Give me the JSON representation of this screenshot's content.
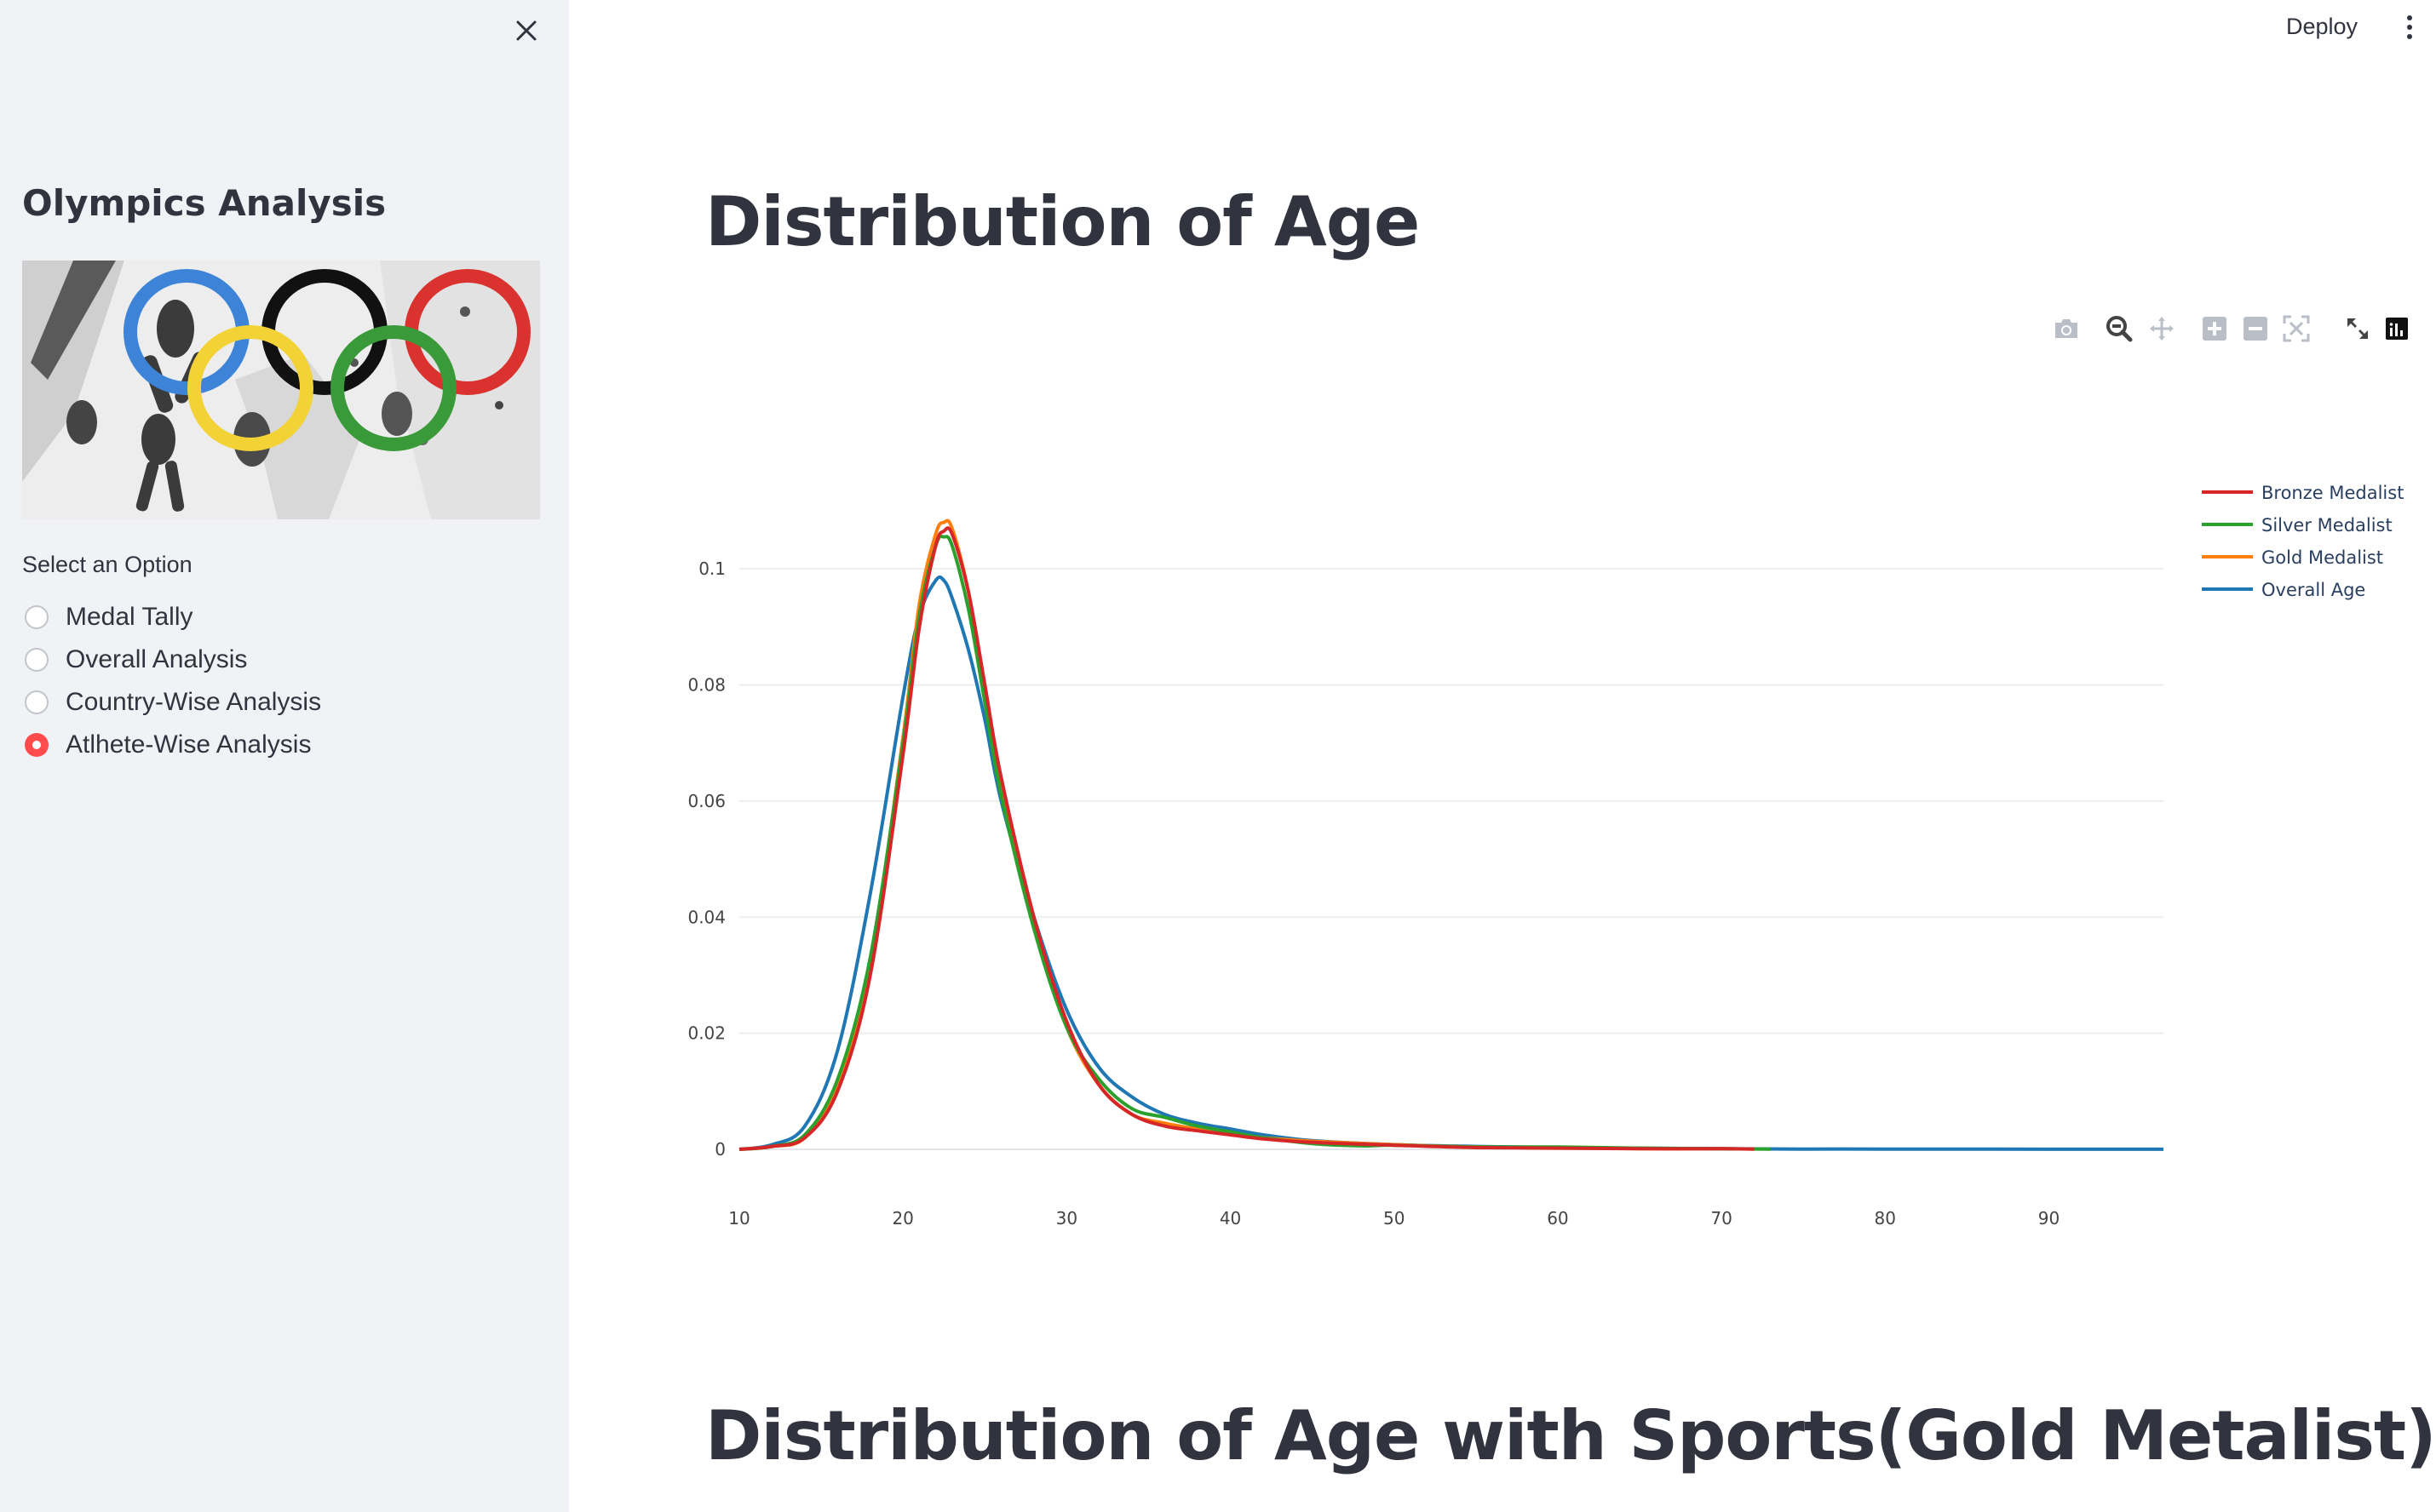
{
  "sidebar": {
    "title": "Olympics Analysis",
    "radio_label": "Select an Option",
    "options": [
      {
        "label": "Medal Tally",
        "selected": false
      },
      {
        "label": "Overall Analysis",
        "selected": false
      },
      {
        "label": "Country-Wise Analysis",
        "selected": false
      },
      {
        "label": "Atlhete-Wise Analysis",
        "selected": true
      }
    ]
  },
  "header": {
    "deploy_label": "Deploy"
  },
  "main": {
    "heading1": "Distribution of Age",
    "heading2": "Distribution of Age with Sports(Gold Metalist)"
  },
  "modebar": [
    "camera-icon",
    "zoom-icon",
    "pan-icon",
    "zoom-in-icon",
    "zoom-out-icon",
    "autoscale-icon",
    "reset-axes-icon",
    "plotly-logo-icon"
  ],
  "chart_data": {
    "type": "line",
    "xlim": [
      10,
      97
    ],
    "ylim": [
      0,
      0.11
    ],
    "x_ticks": [
      10,
      20,
      30,
      40,
      50,
      60,
      70,
      80,
      90
    ],
    "y_ticks": [
      0,
      0.02,
      0.04,
      0.06,
      0.08,
      0.1
    ],
    "y_tick_labels": [
      "0",
      "0.02",
      "0.04",
      "0.06",
      "0.08",
      "0.1"
    ],
    "grid": true,
    "legend_position": "top-right",
    "series": [
      {
        "name": "Bronze Medalist",
        "color": "#d62728",
        "x": [
          10,
          12,
          14,
          16,
          18,
          20,
          21,
          22,
          22.5,
          23,
          24,
          25,
          26,
          28,
          30,
          32,
          34,
          36,
          38,
          40,
          42,
          45,
          50,
          55,
          60,
          65,
          70,
          72
        ],
        "y": [
          0,
          0.0005,
          0.002,
          0.01,
          0.03,
          0.068,
          0.09,
          0.104,
          0.1065,
          0.106,
          0.096,
          0.08,
          0.064,
          0.04,
          0.022,
          0.011,
          0.006,
          0.004,
          0.0032,
          0.0025,
          0.0018,
          0.0012,
          0.0007,
          0.0003,
          0.0002,
          0.0001,
          0.0001,
          5e-05
        ]
      },
      {
        "name": "Silver Medalist",
        "color": "#2ca02c",
        "x": [
          10,
          12,
          14,
          16,
          18,
          20,
          21,
          22,
          22.5,
          23,
          24,
          25,
          26,
          28,
          30,
          32,
          34,
          36,
          38,
          40,
          42,
          45,
          48,
          50,
          55,
          60,
          65,
          70,
          73
        ],
        "y": [
          0,
          0.0005,
          0.0025,
          0.012,
          0.033,
          0.07,
          0.092,
          0.104,
          0.1055,
          0.104,
          0.093,
          0.077,
          0.061,
          0.038,
          0.021,
          0.012,
          0.007,
          0.0055,
          0.004,
          0.003,
          0.002,
          0.001,
          0.0006,
          0.0007,
          0.0004,
          0.0004,
          0.0002,
          0.0001,
          5e-05
        ]
      },
      {
        "name": "Gold Medalist",
        "color": "#ff7f0e",
        "x": [
          10,
          12,
          14,
          16,
          18,
          20,
          21,
          22,
          22.5,
          23,
          24,
          25,
          26,
          28,
          30,
          32,
          34,
          36,
          38,
          40,
          42,
          45,
          50,
          55,
          60,
          65,
          70,
          72
        ],
        "y": [
          0,
          0.0005,
          0.002,
          0.011,
          0.032,
          0.071,
          0.094,
          0.106,
          0.108,
          0.107,
          0.096,
          0.079,
          0.063,
          0.039,
          0.021,
          0.011,
          0.006,
          0.0045,
          0.0035,
          0.0027,
          0.002,
          0.0014,
          0.0008,
          0.0004,
          0.0003,
          0.0001,
          0.0001,
          5e-05
        ]
      },
      {
        "name": "Overall Age",
        "color": "#1f77b4",
        "x": [
          10,
          12,
          14,
          16,
          18,
          20,
          21,
          22,
          22.5,
          23,
          24,
          25,
          26,
          28,
          30,
          32,
          34,
          36,
          38,
          40,
          42,
          45,
          50,
          55,
          60,
          65,
          70,
          75,
          80,
          85,
          90,
          97
        ],
        "y": [
          0,
          0.0008,
          0.004,
          0.017,
          0.044,
          0.078,
          0.092,
          0.098,
          0.098,
          0.095,
          0.086,
          0.074,
          0.06,
          0.04,
          0.024,
          0.014,
          0.009,
          0.006,
          0.0045,
          0.0035,
          0.0025,
          0.0015,
          0.0008,
          0.0005,
          0.0003,
          0.0002,
          0.0001,
          5e-05,
          5e-05,
          3e-05,
          2e-05,
          1e-05
        ]
      }
    ]
  }
}
